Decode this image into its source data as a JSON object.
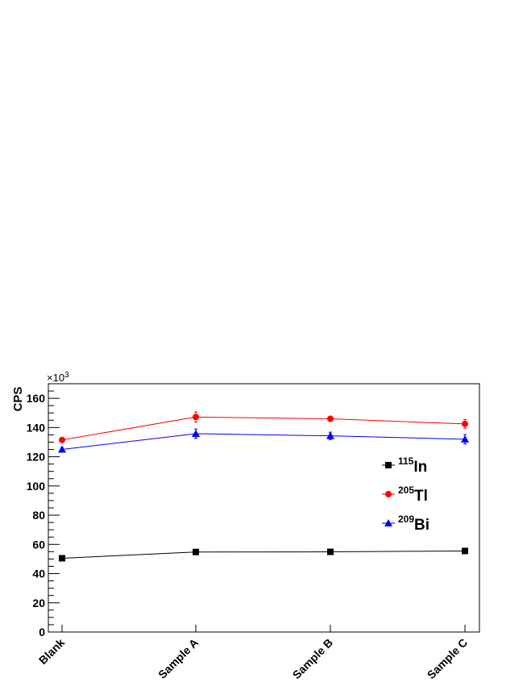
{
  "chart_data": {
    "type": "line",
    "categories": [
      "Blank",
      "Sample A",
      "Sample B",
      "Sample C"
    ],
    "ylabel": "CPS",
    "y_multiplier_label": "×10",
    "y_multiplier_exp": "3",
    "ylim": [
      0,
      170
    ],
    "yticks_major": [
      0,
      20,
      40,
      60,
      80,
      100,
      120,
      140,
      160
    ],
    "grid": false,
    "legend_position": "center-right",
    "series": [
      {
        "name_sup": "115",
        "name_main": "In",
        "marker": "square",
        "color": "#000000",
        "values": [
          50.5,
          54.8,
          54.9,
          55.5
        ],
        "errors": [
          0.6,
          0.6,
          0.6,
          0.6
        ]
      },
      {
        "name_sup": "205",
        "name_main": "Tl",
        "marker": "circle",
        "color": "#ff0000",
        "values": [
          131.5,
          147.2,
          146.0,
          142.5
        ],
        "errors": [
          1.5,
          3.5,
          1.2,
          3.0
        ]
      },
      {
        "name_sup": "209",
        "name_main": "Bi",
        "marker": "triangle",
        "color": "#0000ff",
        "values": [
          125.0,
          135.8,
          134.3,
          132.0
        ],
        "errors": [
          1.2,
          3.2,
          2.5,
          3.2
        ]
      }
    ]
  }
}
